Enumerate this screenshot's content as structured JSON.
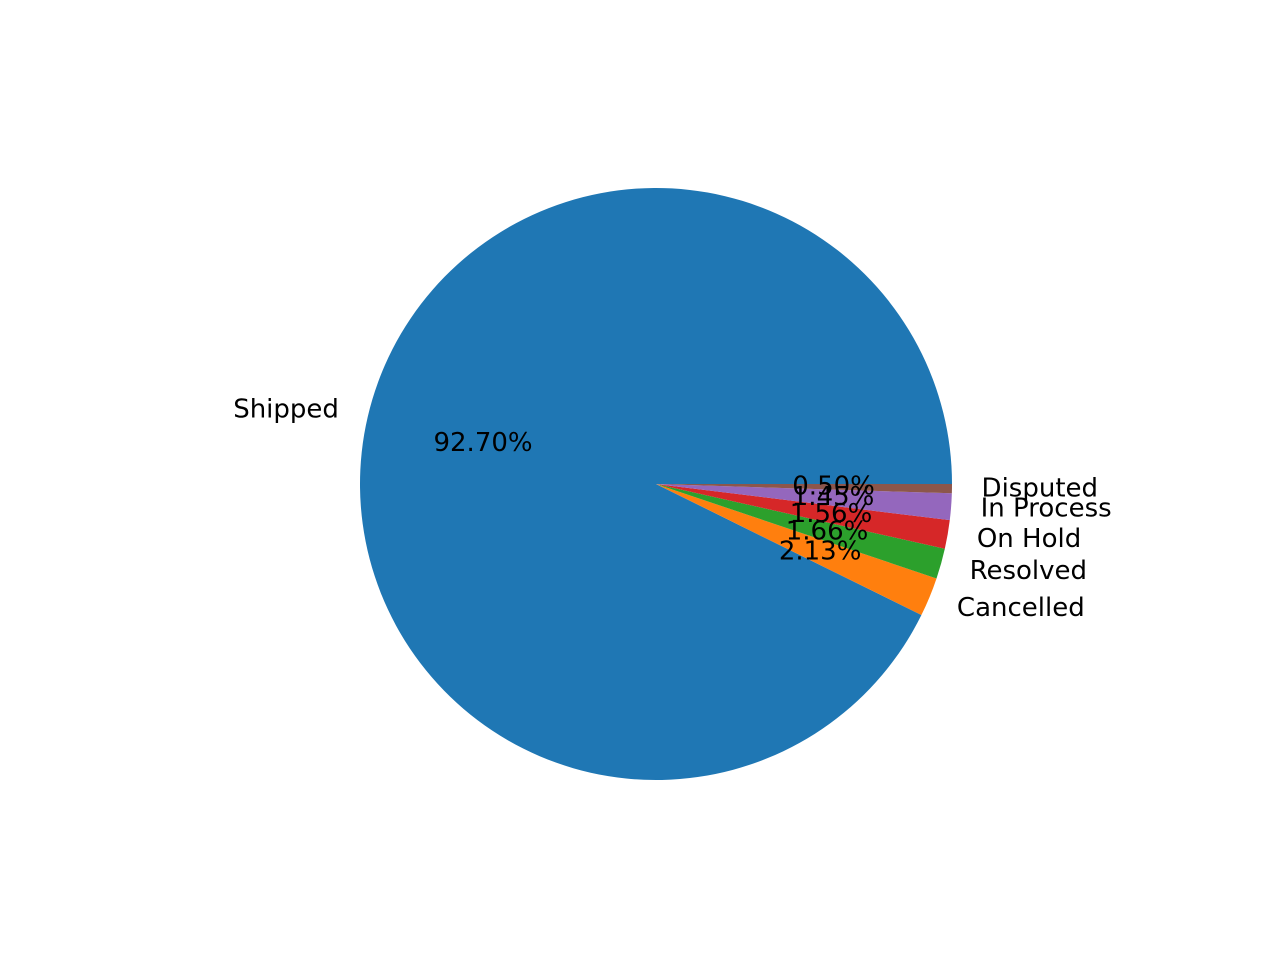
{
  "chart_data": {
    "type": "pie",
    "title": "",
    "start_angle_deg": 0,
    "direction": "counterclockwise",
    "slices": [
      {
        "label": "Shipped",
        "value": 92.7,
        "pct_label": "92.70%",
        "color": "#1f77b4"
      },
      {
        "label": "Cancelled",
        "value": 2.13,
        "pct_label": "2.13%",
        "color": "#ff7f0e"
      },
      {
        "label": "Resolved",
        "value": 1.66,
        "pct_label": "1.66%",
        "color": "#2ca02c"
      },
      {
        "label": "On Hold",
        "value": 1.56,
        "pct_label": "1.56%",
        "color": "#d62728"
      },
      {
        "label": "In Process",
        "value": 1.45,
        "pct_label": "1.45%",
        "color": "#9467bd"
      },
      {
        "label": "Disputed",
        "value": 0.5,
        "pct_label": "0.50%",
        "color": "#8c564b"
      }
    ]
  }
}
